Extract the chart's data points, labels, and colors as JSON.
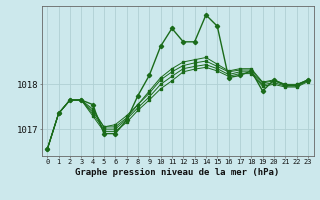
{
  "title": "Graphe pression niveau de la mer (hPa)",
  "bg_color": "#cce8ec",
  "grid_color": "#b0d0d4",
  "line_color": "#1a6b1a",
  "hours": [
    0,
    1,
    2,
    3,
    4,
    5,
    6,
    7,
    8,
    9,
    10,
    11,
    12,
    13,
    14,
    15,
    16,
    17,
    18,
    19,
    20,
    21,
    22,
    23
  ],
  "line_main": [
    1016.55,
    1017.35,
    1017.65,
    1017.65,
    1017.55,
    1016.9,
    1016.9,
    1017.2,
    1017.75,
    1018.2,
    1018.85,
    1019.25,
    1018.95,
    1018.95,
    1019.55,
    1019.3,
    1018.15,
    1018.2,
    1018.3,
    1017.85,
    1018.1,
    1017.98,
    1017.98,
    1018.1
  ],
  "line1": [
    1016.55,
    1017.35,
    1017.65,
    1017.65,
    1017.45,
    1017.05,
    1017.05,
    1017.25,
    1017.55,
    1017.85,
    1018.15,
    1018.35,
    1018.5,
    1018.55,
    1018.6,
    1018.45,
    1018.3,
    1018.35,
    1018.35,
    1018.05,
    1018.1,
    1018.0,
    1018.0,
    1018.1
  ],
  "line2": [
    1016.55,
    1017.35,
    1017.65,
    1017.65,
    1017.4,
    1017.05,
    1017.1,
    1017.3,
    1017.55,
    1017.8,
    1018.1,
    1018.28,
    1018.42,
    1018.48,
    1018.52,
    1018.4,
    1018.28,
    1018.32,
    1018.32,
    1018.03,
    1018.08,
    1017.98,
    1017.98,
    1018.1
  ],
  "line3": [
    1016.55,
    1017.35,
    1017.65,
    1017.65,
    1017.35,
    1017.0,
    1017.0,
    1017.22,
    1017.48,
    1017.72,
    1018.0,
    1018.18,
    1018.35,
    1018.4,
    1018.44,
    1018.35,
    1018.22,
    1018.28,
    1018.28,
    1017.99,
    1018.04,
    1017.96,
    1017.96,
    1018.08
  ],
  "line4": [
    1016.55,
    1017.35,
    1017.65,
    1017.65,
    1017.3,
    1016.95,
    1016.95,
    1017.15,
    1017.42,
    1017.65,
    1017.9,
    1018.08,
    1018.28,
    1018.34,
    1018.38,
    1018.3,
    1018.18,
    1018.24,
    1018.24,
    1017.96,
    1018.0,
    1017.94,
    1017.94,
    1018.06
  ],
  "yticks": [
    1017,
    1018
  ],
  "ylim": [
    1016.4,
    1019.75
  ],
  "xlim": [
    -0.5,
    23.5
  ]
}
